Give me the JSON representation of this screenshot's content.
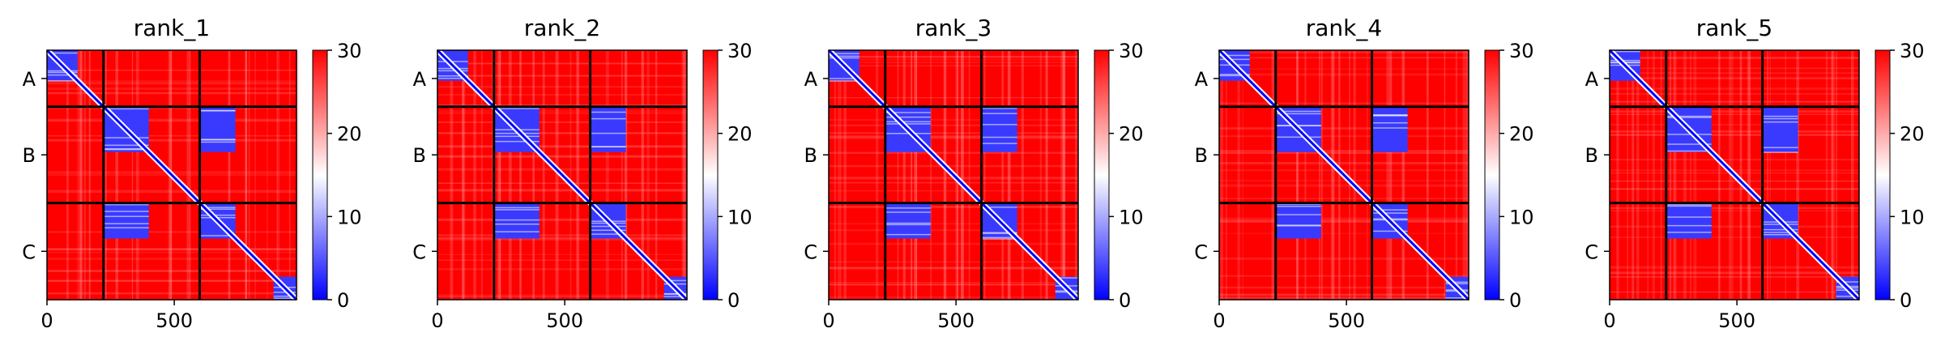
{
  "chart_data": {
    "type": "heatmap",
    "colormap": {
      "name": "bwr",
      "low": "#0000ff",
      "mid": "#ffffff",
      "high": "#ff0000"
    },
    "colorbar": {
      "range": [
        0,
        30
      ],
      "ticks": [
        0,
        10,
        20,
        30
      ]
    },
    "x_range": [
      0,
      980
    ],
    "x_ticks": [
      0,
      500
    ],
    "chain_labels": [
      "A",
      "B",
      "C"
    ],
    "chain_boundaries": [
      222,
      600
    ],
    "panels": [
      {
        "title": "rank_1"
      },
      {
        "title": "rank_2"
      },
      {
        "title": "rank_3"
      },
      {
        "title": "rank_4"
      },
      {
        "title": "rank_5"
      }
    ]
  }
}
